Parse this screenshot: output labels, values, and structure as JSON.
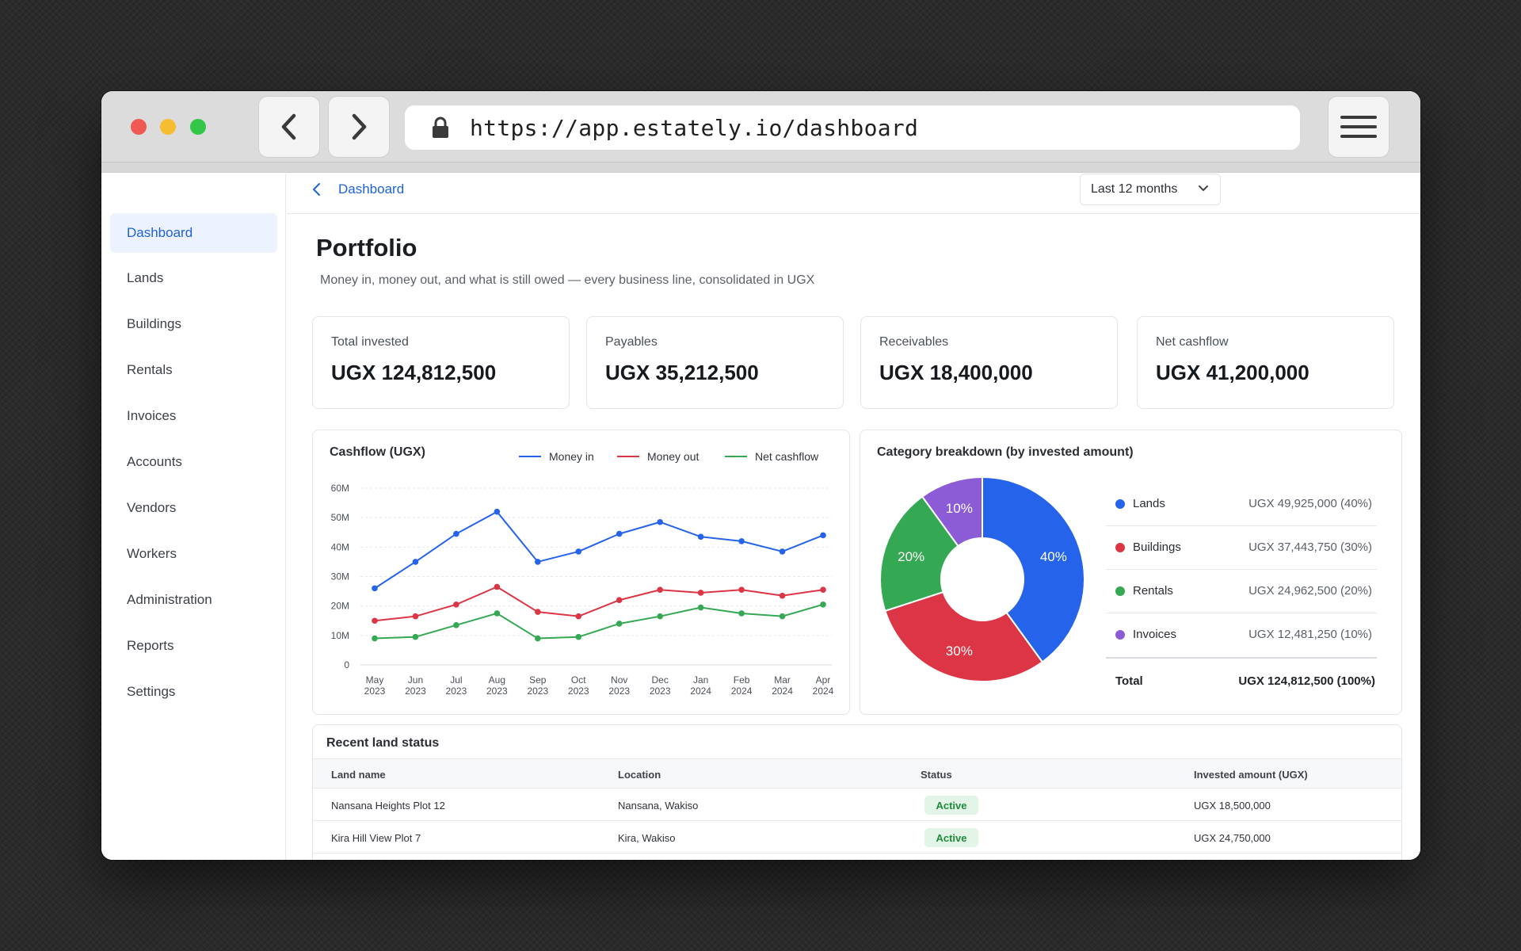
{
  "browser": {
    "url": "https://app.estately.io/dashboard"
  },
  "sidebar": {
    "items": [
      {
        "label": "Dashboard",
        "active": true
      },
      {
        "label": "Lands"
      },
      {
        "label": "Buildings"
      },
      {
        "label": "Rentals"
      },
      {
        "label": "Invoices"
      },
      {
        "label": "Accounts"
      },
      {
        "label": "Vendors"
      },
      {
        "label": "Workers"
      },
      {
        "label": "Administration"
      },
      {
        "label": "Reports"
      },
      {
        "label": "Settings"
      }
    ]
  },
  "header": {
    "breadcrumb": "Dashboard",
    "range_selected": "Last 12 months",
    "title": "Portfolio",
    "subtitle": "Money in, money out, and what is still owed — every business line, consolidated in UGX"
  },
  "kpis": [
    {
      "label": "Total invested",
      "value": "UGX 124,812,500"
    },
    {
      "label": "Payables",
      "value": "UGX 35,212,500"
    },
    {
      "label": "Receivables",
      "value": "UGX 18,400,000"
    },
    {
      "label": "Net cashflow",
      "value": "UGX 41,200,000"
    }
  ],
  "cashflow": {
    "title": "Cashflow (UGX)",
    "legend": [
      "Money in",
      "Money out",
      "Net cashflow"
    ]
  },
  "breakdown": {
    "title": "Category breakdown (by invested amount)",
    "rows": [
      {
        "name": "Lands",
        "value": "UGX 49,925,000 (40%)"
      },
      {
        "name": "Buildings",
        "value": "UGX 37,443,750 (30%)"
      },
      {
        "name": "Rentals",
        "value": "UGX 24,962,500 (20%)"
      },
      {
        "name": "Invoices",
        "value": "UGX 12,481,250 (10%)"
      }
    ],
    "total_label": "Total",
    "total_value": "UGX 124,812,500 (100%)"
  },
  "chart_data": [
    {
      "type": "line",
      "title": "Cashflow (UGX)",
      "x_ticks": [
        [
          "May",
          "2023"
        ],
        [
          "Jun",
          "2023"
        ],
        [
          "Jul",
          "2023"
        ],
        [
          "Aug",
          "2023"
        ],
        [
          "Sep",
          "2023"
        ],
        [
          "Oct",
          "2023"
        ],
        [
          "Nov",
          "2023"
        ],
        [
          "Dec",
          "2023"
        ],
        [
          "Jan",
          "2024"
        ],
        [
          "Feb",
          "2024"
        ],
        [
          "Mar",
          "2024"
        ],
        [
          "Apr",
          "2024"
        ]
      ],
      "y_ticks": [
        "0",
        "10M",
        "20M",
        "30M",
        "40M",
        "50M",
        "60M"
      ],
      "ylim": [
        0,
        60
      ],
      "grid": true,
      "legend_position": "top-right",
      "series": [
        {
          "name": "Money in",
          "color": "#2563eb",
          "values": [
            26,
            35,
            44.5,
            52,
            35,
            38.5,
            44.5,
            48.5,
            43.5,
            42,
            38.5,
            44
          ]
        },
        {
          "name": "Money out",
          "color": "#dc3545",
          "values": [
            15,
            16.5,
            20.5,
            26.5,
            18,
            16.5,
            22,
            25.5,
            24.5,
            25.5,
            23.5,
            25.5
          ]
        },
        {
          "name": "Net cashflow",
          "color": "#34a853",
          "values": [
            9,
            9.5,
            13.5,
            17.5,
            9,
            9.5,
            14,
            16.5,
            19.5,
            17.5,
            16.5,
            20.5
          ]
        }
      ]
    },
    {
      "type": "pie",
      "title": "Category breakdown (by invested amount)",
      "donut": true,
      "slices": [
        {
          "name": "Lands",
          "value": 40,
          "label": "40%",
          "color": "#2563eb"
        },
        {
          "name": "Buildings",
          "value": 30,
          "label": "30%",
          "color": "#dc3545"
        },
        {
          "name": "Rentals",
          "value": 20,
          "label": "20%",
          "color": "#34a853"
        },
        {
          "name": "Invoices",
          "value": 10,
          "label": "10%",
          "color": "#8b5cd6"
        }
      ]
    }
  ],
  "lands_table": {
    "title": "Recent land status",
    "columns": [
      "Land name",
      "Location",
      "Status",
      "Invested amount (UGX)"
    ],
    "rows": [
      [
        "Nansana Heights Plot 12",
        "Nansana, Wakiso",
        "Active",
        "UGX 18,500,000"
      ],
      [
        "Kira Hill View Plot 7",
        "Kira, Wakiso",
        "Active",
        "UGX 24,750,000"
      ]
    ]
  }
}
